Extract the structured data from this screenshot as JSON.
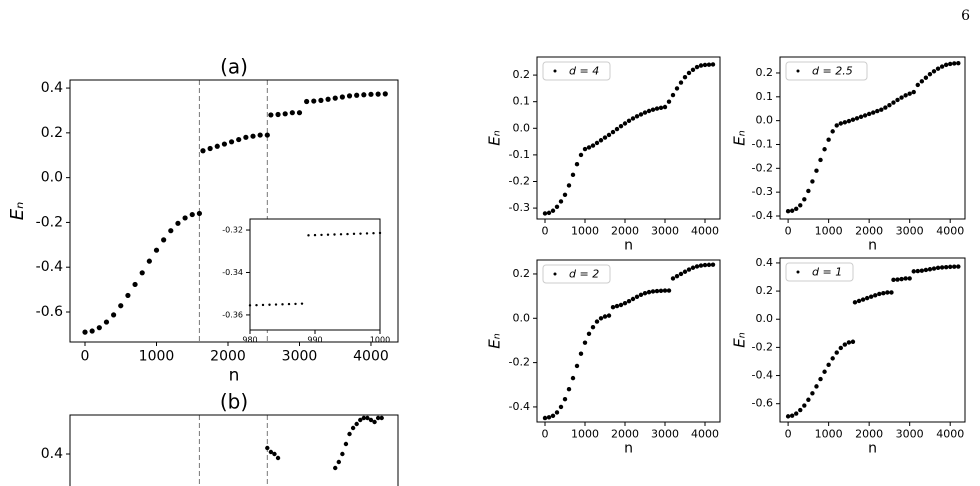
{
  "page": {
    "number": "6"
  },
  "chart_data": [
    {
      "type": "scatter",
      "title": "(a)",
      "xlabel": "n",
      "ylabel": "Eₙ",
      "x": [
        0,
        100,
        200,
        300,
        400,
        500,
        600,
        700,
        800,
        900,
        1000,
        1100,
        1200,
        1300,
        1400,
        1500,
        1600,
        1650,
        1750,
        1850,
        1950,
        2050,
        2150,
        2250,
        2350,
        2450,
        2550,
        2600,
        2700,
        2800,
        2900,
        3000,
        3100,
        3200,
        3300,
        3400,
        3500,
        3600,
        3700,
        3800,
        3900,
        4000,
        4100,
        4200
      ],
      "series": [
        {
          "color": "#000000",
          "values": [
            -0.69,
            -0.685,
            -0.67,
            -0.645,
            -0.613,
            -0.572,
            -0.526,
            -0.477,
            -0.425,
            -0.373,
            -0.324,
            -0.278,
            -0.237,
            -0.204,
            -0.18,
            -0.165,
            -0.16,
            0.12,
            0.13,
            0.14,
            0.15,
            0.16,
            0.17,
            0.18,
            0.185,
            0.19,
            0.19,
            0.28,
            0.282,
            0.285,
            0.29,
            0.29,
            0.34,
            0.342,
            0.345,
            0.35,
            0.355,
            0.36,
            0.365,
            0.368,
            0.37,
            0.372,
            0.373,
            0.374
          ]
        }
      ],
      "xlim": [
        -210,
        4378
      ],
      "ylim": [
        -0.734,
        0.436
      ],
      "xticks": [
        0,
        1000,
        2000,
        3000,
        4000
      ],
      "yticks": [
        -0.6,
        -0.4,
        -0.2,
        {
          "value": 0,
          "label": "0.0"
        },
        0.2,
        0.4
      ],
      "vlines": [
        1600,
        2550
      ]
    },
    {
      "type": "scatter",
      "x": [
        980,
        981,
        982,
        983,
        984,
        985,
        986,
        987,
        988,
        989,
        990,
        991,
        992,
        993,
        994,
        995,
        996,
        997,
        998,
        999,
        1000
      ],
      "series": [
        {
          "color": "#000000",
          "values": [
            -0.3555,
            -0.3554,
            -0.3553,
            -0.3552,
            -0.3551,
            -0.355,
            -0.3549,
            -0.3548,
            -0.3547,
            -0.3225,
            -0.3224,
            -0.3223,
            -0.3222,
            -0.3221,
            -0.322,
            -0.3219,
            -0.3218,
            -0.3217,
            -0.3216,
            -0.3215,
            -0.3214
          ]
        }
      ],
      "xlim": [
        980,
        1000
      ],
      "ylim": [
        -0.3671,
        -0.3148
      ],
      "xticks": [
        980,
        990,
        1000
      ],
      "yticks": [
        -0.36,
        -0.34,
        -0.32
      ]
    },
    {
      "type": "scatter",
      "title": "(b)",
      "x": [
        2550,
        2600,
        2650,
        2700,
        3500,
        3550,
        3600,
        3650,
        3700,
        3750,
        3800,
        3850,
        3900,
        3950,
        4000,
        4050,
        4100,
        4150
      ],
      "series": [
        {
          "color": "#000000",
          "values": [
            0.43,
            0.41,
            0.4,
            0.38,
            0.33,
            0.36,
            0.4,
            0.45,
            0.5,
            0.53,
            0.55,
            0.57,
            0.58,
            0.58,
            0.57,
            0.56,
            0.58,
            0.58
          ]
        }
      ],
      "xlim": [
        -210,
        4378
      ],
      "ylim": [
        0.24,
        0.595
      ],
      "yticks": [
        0.4
      ],
      "vlines": [
        1600,
        2550
      ]
    },
    {
      "type": "scatter",
      "xlabel": "n",
      "ylabel": "Eₙ",
      "legend": "upper left",
      "x": [
        0,
        100,
        200,
        300,
        400,
        500,
        600,
        700,
        800,
        900,
        1000,
        1100,
        1200,
        1300,
        1400,
        1500,
        1600,
        1700,
        1800,
        1900,
        2000,
        2100,
        2200,
        2300,
        2400,
        2500,
        2600,
        2700,
        2800,
        2900,
        3000,
        3100,
        3200,
        3300,
        3400,
        3500,
        3600,
        3700,
        3800,
        3900,
        4000,
        4100,
        4200
      ],
      "series": [
        {
          "name": "d = 4",
          "color": "#000000",
          "values": [
            -0.32,
            -0.318,
            -0.31,
            -0.295,
            -0.275,
            -0.25,
            -0.215,
            -0.175,
            -0.135,
            -0.1,
            -0.078,
            -0.072,
            -0.065,
            -0.055,
            -0.045,
            -0.035,
            -0.025,
            -0.014,
            -0.003,
            0.008,
            0.018,
            0.028,
            0.037,
            0.045,
            0.052,
            0.059,
            0.065,
            0.07,
            0.074,
            0.077,
            0.08,
            0.1,
            0.125,
            0.15,
            0.172,
            0.192,
            0.208,
            0.22,
            0.23,
            0.236,
            0.238,
            0.239,
            0.24
          ]
        }
      ],
      "xlim": [
        -200,
        4375
      ],
      "ylim": [
        -0.341,
        0.268
      ],
      "xticks": [
        0,
        1000,
        2000,
        3000,
        4000
      ],
      "yticks": [
        -0.3,
        -0.2,
        -0.1,
        {
          "value": 0,
          "label": "0.0"
        },
        0.1,
        0.2
      ]
    },
    {
      "type": "scatter",
      "xlabel": "n",
      "ylabel": "Eₙ",
      "legend": "upper left",
      "x": [
        0,
        100,
        200,
        300,
        400,
        500,
        600,
        700,
        800,
        900,
        1000,
        1100,
        1200,
        1300,
        1400,
        1500,
        1600,
        1700,
        1800,
        1900,
        2000,
        2100,
        2200,
        2300,
        2400,
        2500,
        2600,
        2700,
        2800,
        2900,
        3000,
        3100,
        3200,
        3300,
        3400,
        3500,
        3600,
        3700,
        3800,
        3900,
        4000,
        4100,
        4200
      ],
      "series": [
        {
          "name": "d = 2.5",
          "color": "#000000",
          "values": [
            -0.38,
            -0.378,
            -0.37,
            -0.355,
            -0.33,
            -0.295,
            -0.255,
            -0.21,
            -0.165,
            -0.12,
            -0.08,
            -0.045,
            -0.02,
            -0.012,
            -0.007,
            -0.002,
            0.004,
            0.01,
            0.016,
            0.022,
            0.028,
            0.034,
            0.04,
            0.046,
            0.055,
            0.065,
            0.076,
            0.087,
            0.097,
            0.106,
            0.113,
            0.12,
            0.15,
            0.165,
            0.18,
            0.195,
            0.207,
            0.218,
            0.227,
            0.234,
            0.238,
            0.24,
            0.241
          ]
        }
      ],
      "xlim": [
        -200,
        4365
      ],
      "ylim": [
        -0.4126,
        0.267
      ],
      "xticks": [
        0,
        1000,
        2000,
        3000,
        4000
      ],
      "yticks": [
        -0.4,
        -0.3,
        -0.2,
        -0.1,
        {
          "value": 0,
          "label": "0.0"
        },
        0.1,
        0.2
      ]
    },
    {
      "type": "scatter",
      "xlabel": "n",
      "ylabel": "Eₙ",
      "legend": "upper left",
      "x": [
        0,
        100,
        200,
        300,
        400,
        500,
        600,
        700,
        800,
        900,
        1000,
        1100,
        1200,
        1300,
        1400,
        1500,
        1600,
        1700,
        1800,
        1900,
        2000,
        2100,
        2200,
        2300,
        2400,
        2500,
        2600,
        2700,
        2800,
        2900,
        3000,
        3100,
        3200,
        3300,
        3400,
        3500,
        3600,
        3700,
        3800,
        3900,
        4000,
        4100,
        4200
      ],
      "series": [
        {
          "name": "d = 2",
          "color": "#000000",
          "values": [
            -0.45,
            -0.447,
            -0.44,
            -0.425,
            -0.4,
            -0.365,
            -0.32,
            -0.27,
            -0.215,
            -0.16,
            -0.11,
            -0.07,
            -0.04,
            -0.015,
            0.0,
            0.008,
            0.012,
            0.05,
            0.055,
            0.06,
            0.068,
            0.077,
            0.087,
            0.097,
            0.106,
            0.113,
            0.118,
            0.121,
            0.123,
            0.124,
            0.125,
            0.125,
            0.18,
            0.19,
            0.2,
            0.21,
            0.22,
            0.228,
            0.234,
            0.238,
            0.24,
            0.241,
            0.242
          ]
        }
      ],
      "xlim": [
        -200,
        4375
      ],
      "ylim": [
        -0.468,
        0.263
      ],
      "xticks": [
        0,
        1000,
        2000,
        3000,
        4000
      ],
      "yticks": [
        -0.4,
        -0.2,
        {
          "value": 0,
          "label": "0.0"
        },
        0.2
      ]
    },
    {
      "type": "scatter",
      "xlabel": "n",
      "ylabel": "Eₙ",
      "legend": "upper left",
      "x": [
        0,
        100,
        200,
        300,
        400,
        500,
        600,
        700,
        800,
        900,
        1000,
        1100,
        1200,
        1300,
        1400,
        1500,
        1600,
        1650,
        1750,
        1850,
        1950,
        2050,
        2150,
        2250,
        2350,
        2450,
        2550,
        2600,
        2700,
        2800,
        2900,
        3000,
        3100,
        3200,
        3300,
        3400,
        3500,
        3600,
        3700,
        3800,
        3900,
        4000,
        4100,
        4200
      ],
      "series": [
        {
          "name": "d = 1",
          "color": "#000000",
          "values": [
            -0.69,
            -0.685,
            -0.67,
            -0.645,
            -0.613,
            -0.572,
            -0.526,
            -0.477,
            -0.425,
            -0.373,
            -0.324,
            -0.278,
            -0.237,
            -0.204,
            -0.18,
            -0.165,
            -0.16,
            0.12,
            0.13,
            0.14,
            0.15,
            0.16,
            0.17,
            0.18,
            0.185,
            0.19,
            0.19,
            0.28,
            0.282,
            0.285,
            0.29,
            0.29,
            0.34,
            0.342,
            0.345,
            0.35,
            0.355,
            0.36,
            0.365,
            0.368,
            0.37,
            0.372,
            0.373,
            0.374
          ]
        }
      ],
      "xlim": [
        -200,
        4365
      ],
      "ylim": [
        -0.73,
        0.435
      ],
      "xticks": [
        0,
        1000,
        2000,
        3000,
        4000
      ],
      "yticks": [
        -0.6,
        -0.4,
        -0.2,
        {
          "value": 0,
          "label": "0.0"
        },
        0.2,
        0.4
      ]
    }
  ]
}
